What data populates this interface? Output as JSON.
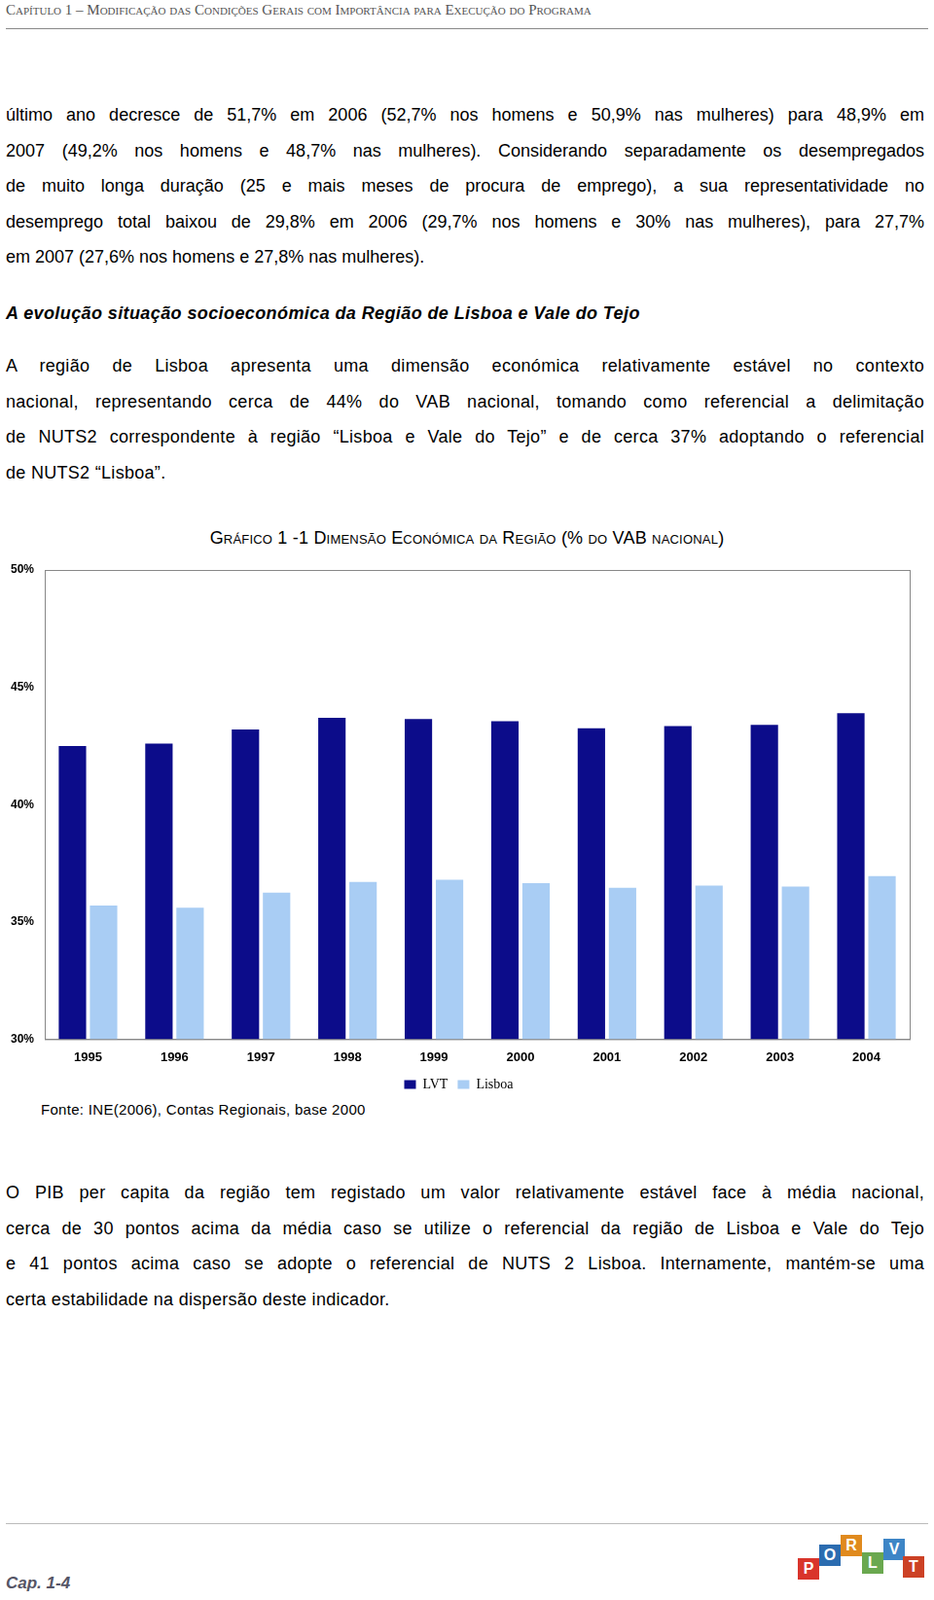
{
  "header": "Capítulo 1 – Modificação das Condições Gerais com Importância para Execução do Programa",
  "paragraph_1": [
    "último ano decresce de 51,7% em 2006 (52,7% nos homens e 50,9% nas mulheres) para 48,9% em",
    "2007 (49,2% nos homens e 48,7% nas mulheres). Considerando separadamente os desempregados",
    "de muito longa duração (25 e mais meses de procura de emprego), a sua representatividade no",
    "desemprego total baixou de 29,8% em 2006 (29,7% nos homens e 30% nas mulheres), para 27,7%",
    "em 2007 (27,6% nos homens e 27,8% nas mulheres)."
  ],
  "heading": "A evolução situação socioeconómica da Região de Lisboa e Vale do Tejo",
  "paragraph_2": [
    "A região de Lisboa apresenta uma dimensão económica relativamente estável no contexto",
    "nacional, representando cerca de 44% do VAB nacional, tomando como referencial a delimitação",
    "de NUTS2 correspondente à região “Lisboa e Vale do Tejo” e de cerca 37% adoptando o referencial",
    "de NUTS2 “Lisboa”."
  ],
  "chart_data": {
    "type": "bar",
    "title": "Gráfico 1 -1 Dimensão Económica da Região (% do VAB nacional)",
    "categories": [
      "1995",
      "1996",
      "1997",
      "1998",
      "1999",
      "2000",
      "2001",
      "2002",
      "2003",
      "2004"
    ],
    "series": [
      {
        "name": "LVT",
        "color": "#0c0c8a",
        "values": [
          42.5,
          42.6,
          43.2,
          43.7,
          43.65,
          43.55,
          43.25,
          43.35,
          43.4,
          43.9
        ]
      },
      {
        "name": "Lisboa",
        "color": "#a9cdf4",
        "values": [
          35.7,
          35.6,
          36.25,
          36.7,
          36.8,
          36.65,
          36.45,
          36.55,
          36.5,
          36.95
        ]
      }
    ],
    "ylim": [
      30,
      50
    ],
    "yticks": [
      {
        "value": 30,
        "label": "30%"
      },
      {
        "value": 35,
        "label": "35%"
      },
      {
        "value": 40,
        "label": "40%"
      },
      {
        "value": 45,
        "label": "45%"
      },
      {
        "value": 50,
        "label": "50%"
      }
    ],
    "grid": false,
    "legend": "bottom"
  },
  "source": "Fonte: INE(2006), Contas Regionais, base 2000",
  "paragraph_3": [
    "O PIB per capita da região tem registado um valor relativamente estável face à média nacional,",
    "cerca de 30 pontos acima da média caso se utilize o referencial da região de Lisboa e Vale do Tejo",
    "e 41 pontos acima caso se adopte o referencial de NUTS 2 Lisboa. Internamente, mantém-se uma",
    "certa estabilidade na dispersão deste indicador."
  ],
  "footer": "Cap. 1-4",
  "logo": [
    "P",
    "O",
    "R",
    "L",
    "V",
    "T"
  ]
}
